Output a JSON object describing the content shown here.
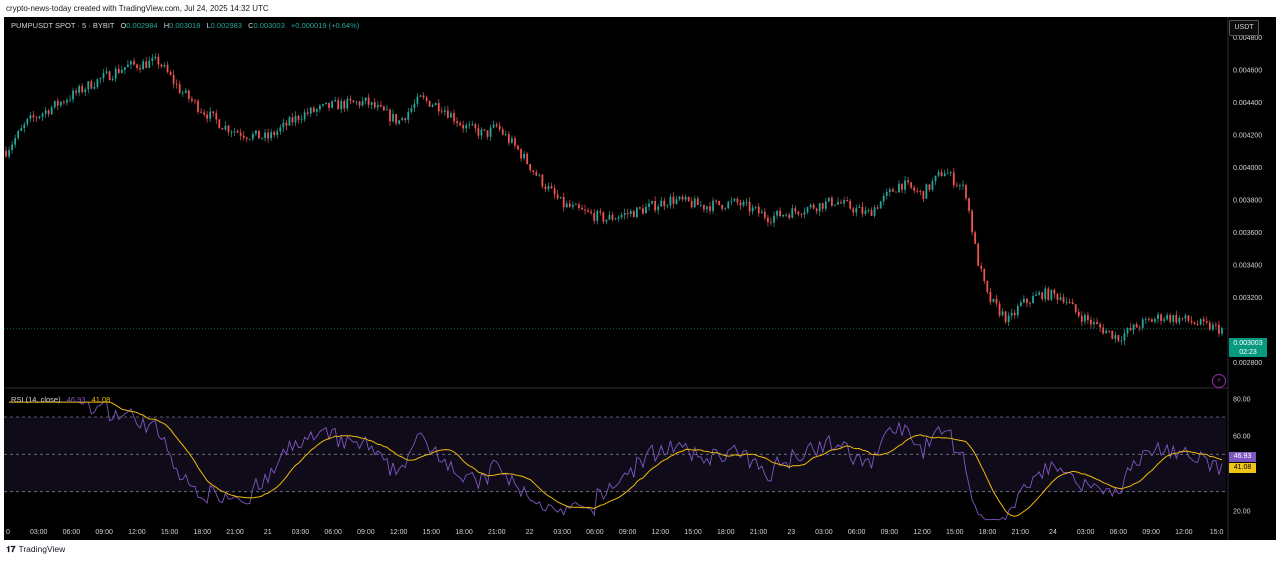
{
  "header": {
    "caption": "crypto-news-today created with TradingView.com, Jul 24, 2025 14:32 UTC"
  },
  "legend": {
    "symbol": "PUMPUSDT SPOT · 5 · BYBIT",
    "open_label": "O",
    "open": "0.002984",
    "high_label": "H",
    "high": "0.003018",
    "low_label": "L",
    "low": "0.002983",
    "close_label": "C",
    "close": "0.003003",
    "change": "+0.000019 (+0.64%)"
  },
  "currency_badge": "USDT",
  "price_tag": {
    "price": "0.003003",
    "countdown": "02:23"
  },
  "rsi_legend": {
    "label": "RSI (14, close)",
    "rsi": "46.93",
    "ma": "41.08"
  },
  "footer": {
    "brand": "TradingView"
  },
  "colors": {
    "up": "#26a69a",
    "down": "#ef5350",
    "rsi_line": "#7e57c2",
    "rsi_ma": "#f0b90b",
    "background": "#000000"
  },
  "icons": {
    "alert": "lightning-icon",
    "logo": "tradingview-logo-icon"
  },
  "chart_data": [
    {
      "type": "candlestick",
      "title": "PUMPUSDT SPOT · 5 · BYBIT",
      "ylim": [
        0.0027,
        0.0049
      ],
      "y_ticks": [
        "0.004800",
        "0.004600",
        "0.004400",
        "0.004200",
        "0.004000",
        "0.003800",
        "0.003600",
        "0.003400",
        "0.003200",
        "0.002800"
      ],
      "x_ticks": [
        "0",
        "03:00",
        "06:00",
        "09:00",
        "12:00",
        "15:00",
        "18:00",
        "21:00",
        "21",
        "03:00",
        "06:00",
        "09:00",
        "12:00",
        "15:00",
        "18:00",
        "21:00",
        "22",
        "03:00",
        "06:00",
        "09:00",
        "12:00",
        "15:00",
        "18:00",
        "21:00",
        "23",
        "03:00",
        "06:00",
        "09:00",
        "12:00",
        "15:00",
        "18:00",
        "21:00",
        "24",
        "03:00",
        "06:00",
        "09:00",
        "12:00",
        "15:0"
      ],
      "x_hours": [
        0,
        3,
        6,
        9,
        12,
        15,
        18,
        21,
        24,
        27,
        30,
        33,
        36,
        39,
        42,
        45,
        48,
        51,
        54,
        57,
        60,
        63,
        66,
        69,
        72,
        75,
        78,
        81,
        84,
        87,
        90,
        93,
        96,
        99,
        102,
        105,
        108,
        111
      ],
      "price_path": {
        "hours": [
          0,
          2,
          5,
          8,
          11,
          14,
          16,
          18,
          20,
          22,
          24,
          27,
          30,
          33,
          36,
          38,
          40,
          42,
          44,
          45,
          47,
          49,
          51,
          53,
          55,
          58,
          61,
          64,
          67,
          70,
          73,
          76,
          79,
          82,
          84,
          86,
          88,
          89,
          90,
          91,
          92,
          93,
          95,
          97,
          98,
          100,
          102,
          104,
          106,
          108,
          110,
          111.5
        ],
        "prices": [
          0.0041,
          0.00428,
          0.0044,
          0.00452,
          0.00462,
          0.00465,
          0.00447,
          0.00435,
          0.00425,
          0.0042,
          0.00418,
          0.00432,
          0.00438,
          0.0044,
          0.00428,
          0.00442,
          0.00437,
          0.00425,
          0.0042,
          0.00425,
          0.0041,
          0.00392,
          0.00377,
          0.00372,
          0.00368,
          0.00373,
          0.0038,
          0.00376,
          0.00378,
          0.00369,
          0.00374,
          0.00379,
          0.00371,
          0.0039,
          0.00383,
          0.00398,
          0.00385,
          0.00345,
          0.0032,
          0.00312,
          0.00305,
          0.00315,
          0.00322,
          0.0032,
          0.00311,
          0.00302,
          0.00295,
          0.00303,
          0.00308,
          0.00306,
          0.00302,
          0.003
        ]
      },
      "last_price": 0.003003
    },
    {
      "type": "line",
      "title": "RSI (14, close)",
      "ylim": [
        10,
        85
      ],
      "y_ticks": [
        "80.00",
        "60.00",
        "20.00"
      ],
      "bands": [
        70,
        50,
        30
      ],
      "series": [
        {
          "name": "RSI",
          "last": 46.93
        },
        {
          "name": "RSI-based MA",
          "last": 41.08
        }
      ]
    }
  ]
}
